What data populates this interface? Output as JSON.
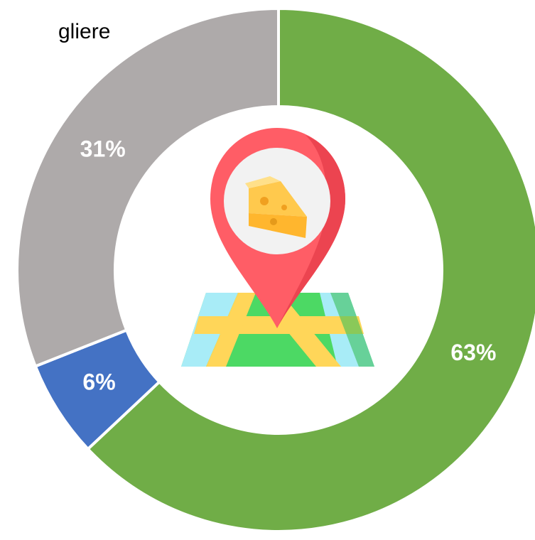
{
  "chart_data": {
    "type": "pie",
    "donut": true,
    "title": "gliere",
    "categories": [
      null,
      null,
      null
    ],
    "values": [
      63,
      6,
      31
    ],
    "value_labels": [
      "63%",
      "6%",
      "31%"
    ],
    "colors": [
      "#70ad47",
      "#4472c4",
      "#aeaaaa"
    ]
  }
}
